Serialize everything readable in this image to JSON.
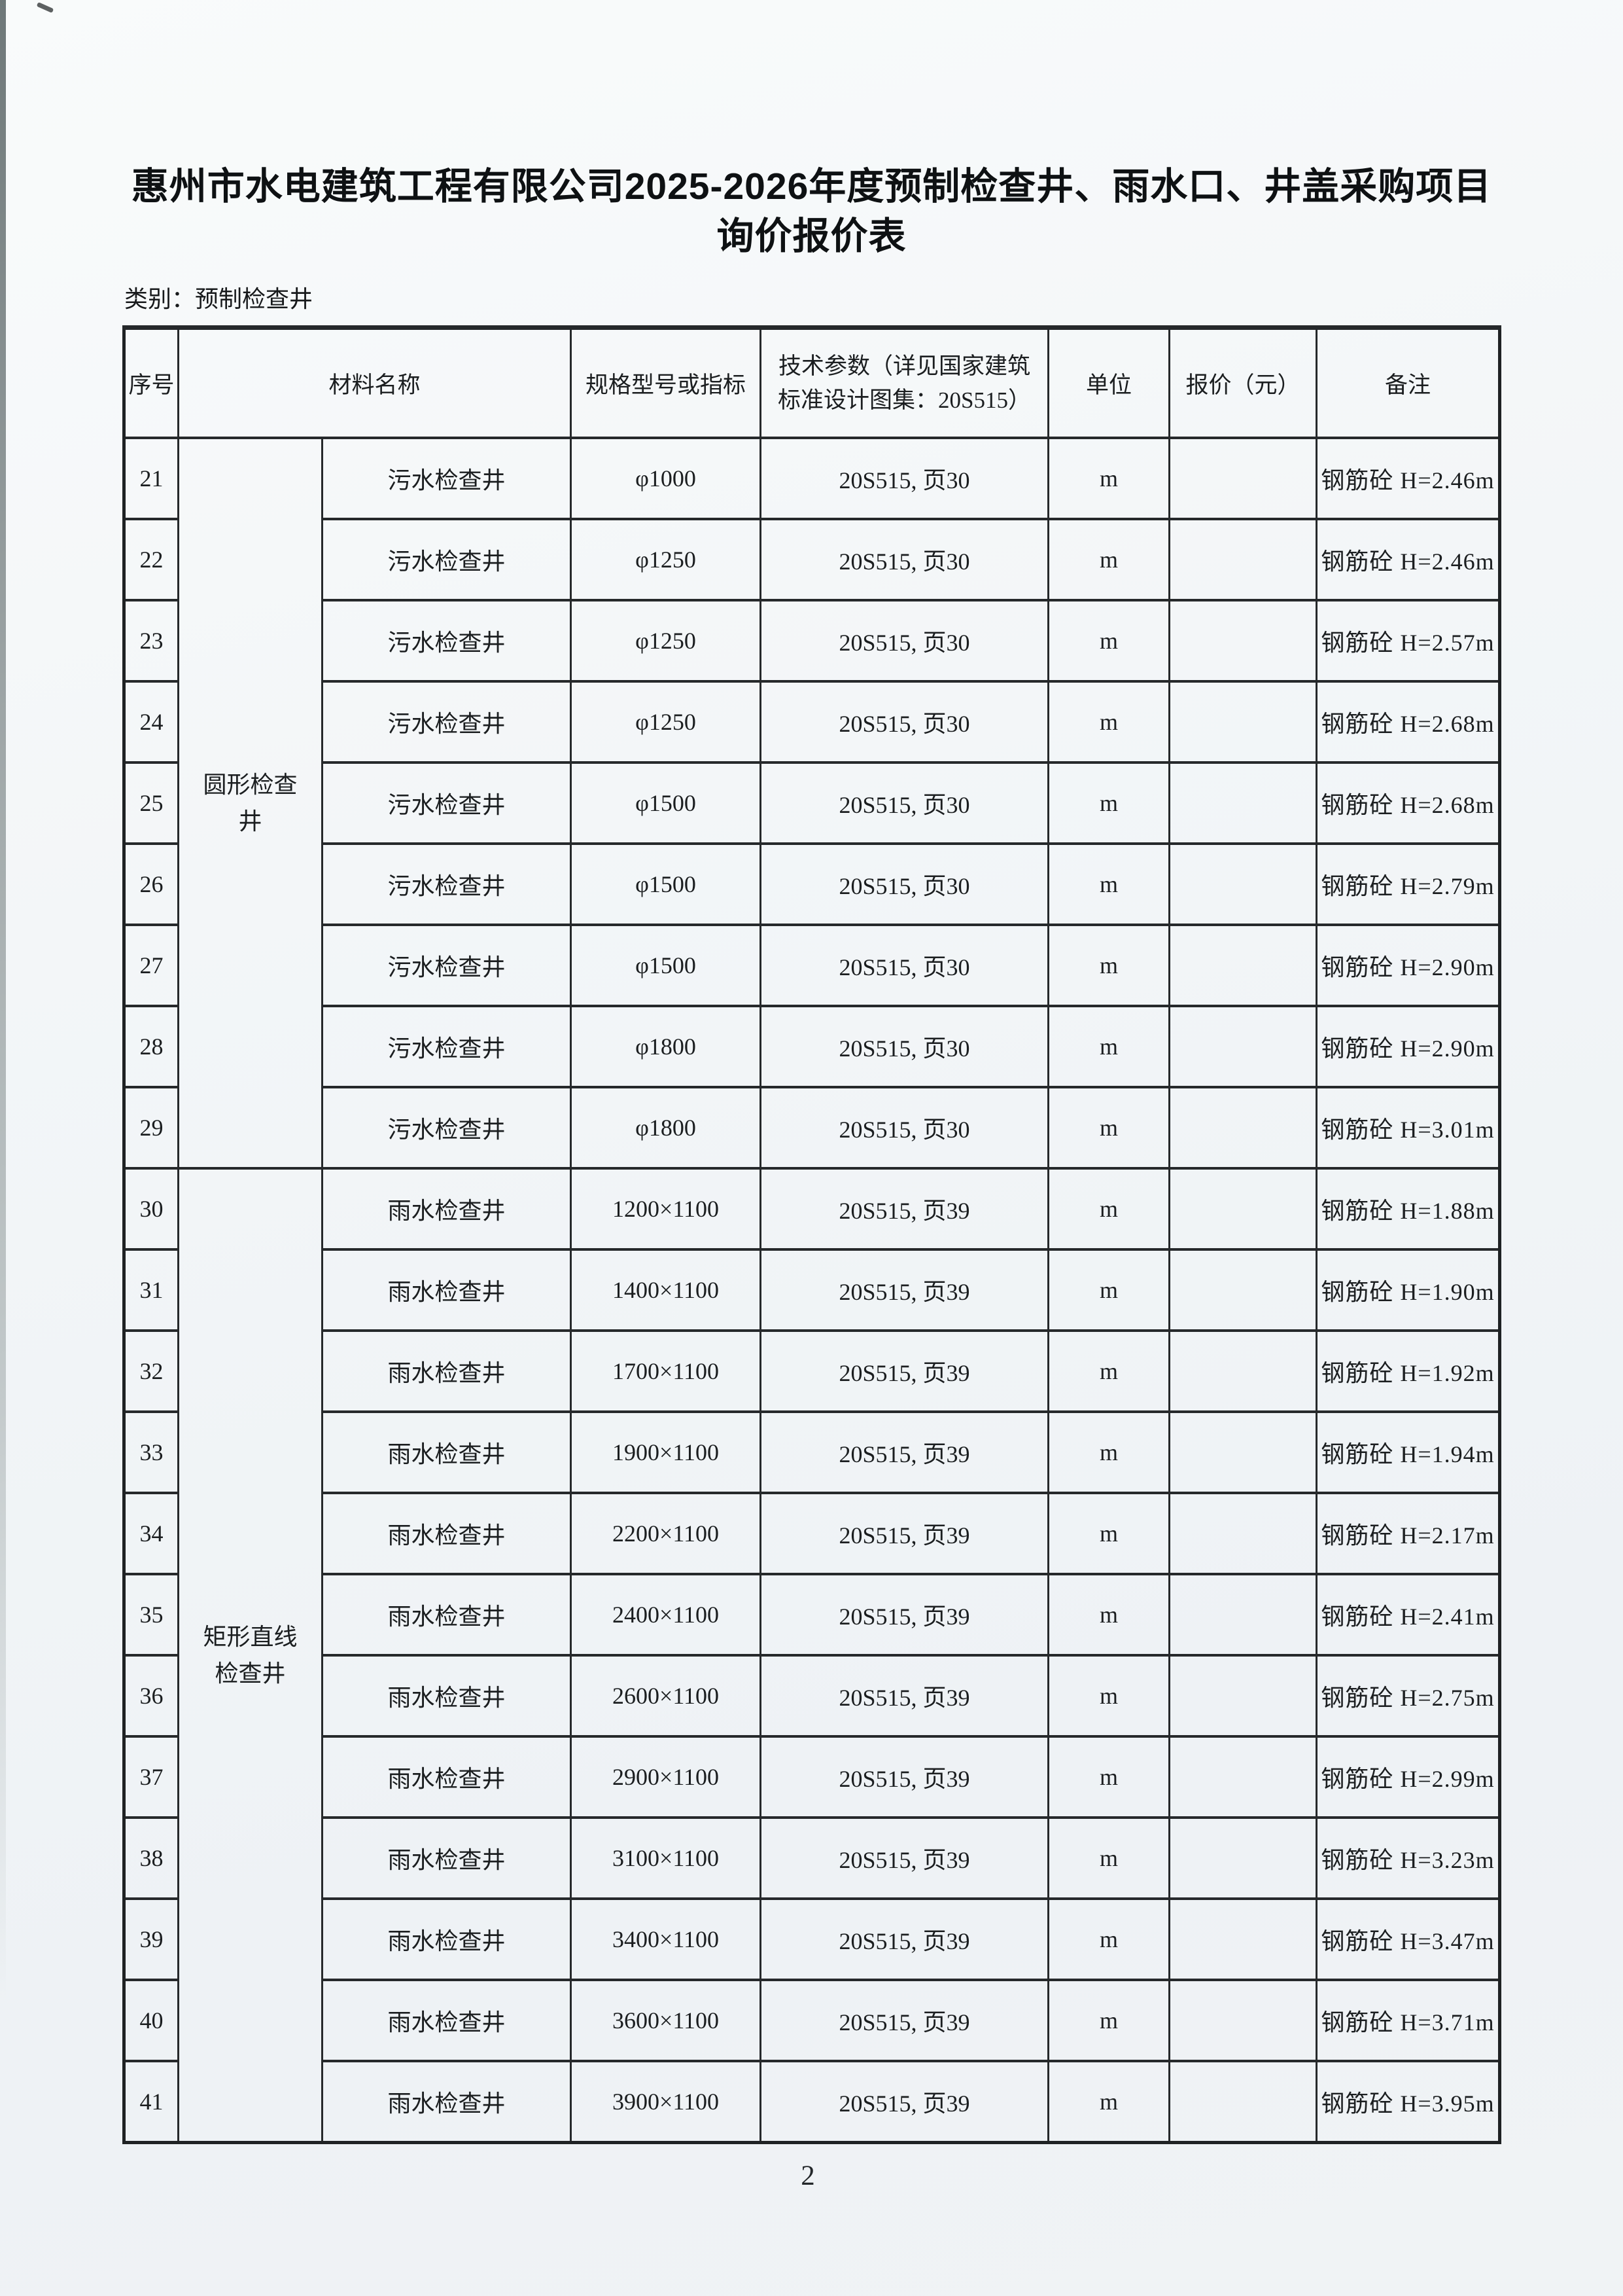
{
  "page": {
    "title_line1": "惠州市水电建筑工程有限公司2025-2026年度预制检查井、雨水口、井盖采购项目",
    "title_line2": "询价报价表",
    "category_label": "类别：预制检查井",
    "page_number": "2"
  },
  "table": {
    "headers": {
      "no": "序号",
      "material": "材料名称",
      "spec": "规格型号或指标",
      "tech_line1": "技术参数（详见国家建筑",
      "tech_line2": "标准设计图集：20S515）",
      "unit": "单位",
      "price": "报价（元）",
      "remark": "备注"
    },
    "groups": [
      {
        "label": "圆形检查井",
        "row_count": 9
      },
      {
        "label": "矩形直线检查井",
        "row_count": 12
      }
    ],
    "rows": [
      {
        "no": "21",
        "name": "污水检查井",
        "spec": "φ1000",
        "tech": "20S515, 页30",
        "unit": "m",
        "price": "",
        "remark": "钢筋砼 H=2.46m"
      },
      {
        "no": "22",
        "name": "污水检查井",
        "spec": "φ1250",
        "tech": "20S515, 页30",
        "unit": "m",
        "price": "",
        "remark": "钢筋砼 H=2.46m"
      },
      {
        "no": "23",
        "name": "污水检查井",
        "spec": "φ1250",
        "tech": "20S515, 页30",
        "unit": "m",
        "price": "",
        "remark": "钢筋砼 H=2.57m"
      },
      {
        "no": "24",
        "name": "污水检查井",
        "spec": "φ1250",
        "tech": "20S515, 页30",
        "unit": "m",
        "price": "",
        "remark": "钢筋砼 H=2.68m"
      },
      {
        "no": "25",
        "name": "污水检查井",
        "spec": "φ1500",
        "tech": "20S515, 页30",
        "unit": "m",
        "price": "",
        "remark": "钢筋砼 H=2.68m"
      },
      {
        "no": "26",
        "name": "污水检查井",
        "spec": "φ1500",
        "tech": "20S515, 页30",
        "unit": "m",
        "price": "",
        "remark": "钢筋砼 H=2.79m"
      },
      {
        "no": "27",
        "name": "污水检查井",
        "spec": "φ1500",
        "tech": "20S515, 页30",
        "unit": "m",
        "price": "",
        "remark": "钢筋砼 H=2.90m"
      },
      {
        "no": "28",
        "name": "污水检查井",
        "spec": "φ1800",
        "tech": "20S515, 页30",
        "unit": "m",
        "price": "",
        "remark": "钢筋砼 H=2.90m"
      },
      {
        "no": "29",
        "name": "污水检查井",
        "spec": "φ1800",
        "tech": "20S515, 页30",
        "unit": "m",
        "price": "",
        "remark": "钢筋砼 H=3.01m"
      },
      {
        "no": "30",
        "name": "雨水检查井",
        "spec": "1200×1100",
        "tech": "20S515, 页39",
        "unit": "m",
        "price": "",
        "remark": "钢筋砼 H=1.88m"
      },
      {
        "no": "31",
        "name": "雨水检查井",
        "spec": "1400×1100",
        "tech": "20S515, 页39",
        "unit": "m",
        "price": "",
        "remark": "钢筋砼 H=1.90m"
      },
      {
        "no": "32",
        "name": "雨水检查井",
        "spec": "1700×1100",
        "tech": "20S515, 页39",
        "unit": "m",
        "price": "",
        "remark": "钢筋砼 H=1.92m"
      },
      {
        "no": "33",
        "name": "雨水检查井",
        "spec": "1900×1100",
        "tech": "20S515, 页39",
        "unit": "m",
        "price": "",
        "remark": "钢筋砼 H=1.94m"
      },
      {
        "no": "34",
        "name": "雨水检查井",
        "spec": "2200×1100",
        "tech": "20S515, 页39",
        "unit": "m",
        "price": "",
        "remark": "钢筋砼 H=2.17m"
      },
      {
        "no": "35",
        "name": "雨水检查井",
        "spec": "2400×1100",
        "tech": "20S515, 页39",
        "unit": "m",
        "price": "",
        "remark": "钢筋砼 H=2.41m"
      },
      {
        "no": "36",
        "name": "雨水检查井",
        "spec": "2600×1100",
        "tech": "20S515, 页39",
        "unit": "m",
        "price": "",
        "remark": "钢筋砼 H=2.75m"
      },
      {
        "no": "37",
        "name": "雨水检查井",
        "spec": "2900×1100",
        "tech": "20S515, 页39",
        "unit": "m",
        "price": "",
        "remark": "钢筋砼 H=2.99m"
      },
      {
        "no": "38",
        "name": "雨水检查井",
        "spec": "3100×1100",
        "tech": "20S515, 页39",
        "unit": "m",
        "price": "",
        "remark": "钢筋砼 H=3.23m"
      },
      {
        "no": "39",
        "name": "雨水检查井",
        "spec": "3400×1100",
        "tech": "20S515, 页39",
        "unit": "m",
        "price": "",
        "remark": "钢筋砼 H=3.47m"
      },
      {
        "no": "40",
        "name": "雨水检查井",
        "spec": "3600×1100",
        "tech": "20S515, 页39",
        "unit": "m",
        "price": "",
        "remark": "钢筋砼 H=3.71m"
      },
      {
        "no": "41",
        "name": "雨水检查井",
        "spec": "3900×1100",
        "tech": "20S515, 页39",
        "unit": "m",
        "price": "",
        "remark": "钢筋砼 H=3.95m"
      }
    ]
  }
}
